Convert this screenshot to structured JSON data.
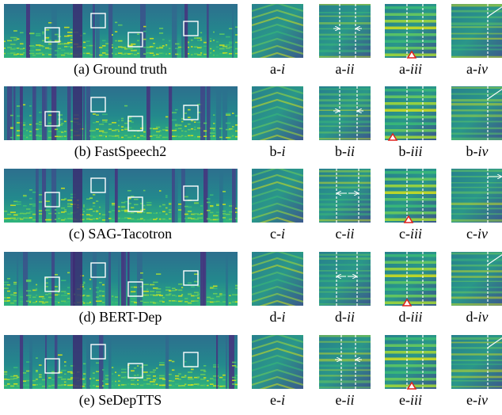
{
  "rows": [
    {
      "caption": "(a) Ground truth",
      "crops": [
        {
          "prefix": "a-",
          "numeral": "i"
        },
        {
          "prefix": "a-",
          "numeral": "ii"
        },
        {
          "prefix": "a-",
          "numeral": "iii"
        },
        {
          "prefix": "a-",
          "numeral": "iv"
        }
      ]
    },
    {
      "caption": "(b) FastSpeech2",
      "crops": [
        {
          "prefix": "b-",
          "numeral": "i"
        },
        {
          "prefix": "b-",
          "numeral": "ii"
        },
        {
          "prefix": "b-",
          "numeral": "iii"
        },
        {
          "prefix": "b-",
          "numeral": "iv"
        }
      ]
    },
    {
      "caption": "(c) SAG-Tacotron",
      "crops": [
        {
          "prefix": "c-",
          "numeral": "i"
        },
        {
          "prefix": "c-",
          "numeral": "ii"
        },
        {
          "prefix": "c-",
          "numeral": "iii"
        },
        {
          "prefix": "c-",
          "numeral": "iv"
        }
      ]
    },
    {
      "caption": "(d) BERT-Dep",
      "crops": [
        {
          "prefix": "d-",
          "numeral": "i"
        },
        {
          "prefix": "d-",
          "numeral": "ii"
        },
        {
          "prefix": "d-",
          "numeral": "iii"
        },
        {
          "prefix": "d-",
          "numeral": "iv"
        }
      ]
    },
    {
      "caption": "(e) SeDepTTS",
      "crops": [
        {
          "prefix": "e-",
          "numeral": "i"
        },
        {
          "prefix": "e-",
          "numeral": "ii"
        },
        {
          "prefix": "e-",
          "numeral": "iii"
        },
        {
          "prefix": "e-",
          "numeral": "iv"
        }
      ]
    }
  ]
}
